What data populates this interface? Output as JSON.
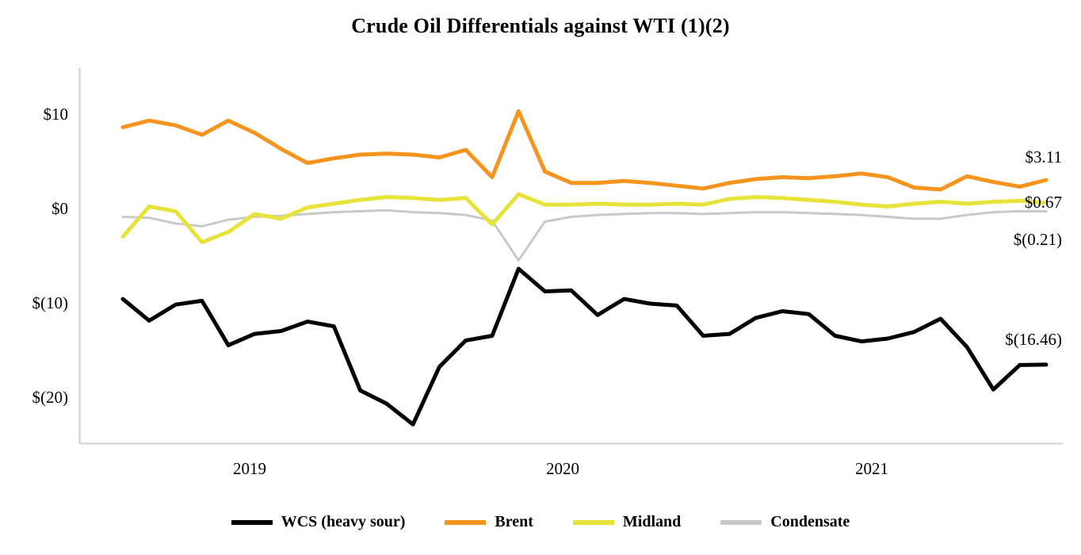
{
  "chart_data": {
    "type": "line",
    "title": "Crude Oil Differentials against WTI (1)(2)",
    "xlabel": "",
    "ylabel": "",
    "ylim": [
      -25,
      15
    ],
    "grid": false,
    "legend_position": "bottom",
    "axis_color": "#CFCFCF",
    "y_ticks": [
      {
        "label": "$10",
        "value": 10
      },
      {
        "label": "$0",
        "value": 0
      },
      {
        "label": "$(10)",
        "value": -10
      },
      {
        "label": "$(20)",
        "value": -20
      }
    ],
    "x_ticks": [
      {
        "label": "2019"
      },
      {
        "label": "2020"
      },
      {
        "label": "2021"
      }
    ],
    "series": [
      {
        "name": "WCS (heavy sour)",
        "color": "#000000",
        "end_label": "$(16.46)",
        "values": [
          -9.5,
          -11.8,
          -10.1,
          -9.7,
          -14.4,
          -13.2,
          -12.9,
          -11.9,
          -12.4,
          -19.2,
          -20.6,
          -22.8,
          -16.7,
          -13.9,
          -13.4,
          -6.3,
          -8.7,
          -8.6,
          -11.2,
          -9.5,
          -10.0,
          -10.2,
          -13.4,
          -13.2,
          -11.5,
          -10.8,
          -11.1,
          -13.4,
          -14.0,
          -13.7,
          -13.0,
          -11.6,
          -14.6,
          -19.1,
          -16.5,
          -16.46
        ]
      },
      {
        "name": "Brent",
        "color": "#F7941E",
        "end_label": "$3.11",
        "values": [
          8.7,
          9.4,
          8.9,
          7.9,
          9.4,
          8.1,
          6.4,
          4.9,
          5.4,
          5.8,
          5.9,
          5.8,
          5.5,
          6.3,
          3.4,
          10.4,
          4.0,
          2.8,
          2.8,
          3.0,
          2.8,
          2.5,
          2.2,
          2.8,
          3.2,
          3.4,
          3.3,
          3.5,
          3.8,
          3.4,
          2.3,
          2.1,
          3.5,
          2.9,
          2.4,
          3.11
        ]
      },
      {
        "name": "Midland",
        "color": "#E8E33A",
        "end_label": "$0.67",
        "values": [
          -2.9,
          0.3,
          -0.2,
          -3.5,
          -2.4,
          -0.5,
          -1.0,
          0.2,
          0.6,
          1.0,
          1.3,
          1.2,
          1.0,
          1.2,
          -1.6,
          1.6,
          0.5,
          0.5,
          0.6,
          0.5,
          0.5,
          0.6,
          0.5,
          1.1,
          1.3,
          1.2,
          1.0,
          0.8,
          0.5,
          0.3,
          0.6,
          0.8,
          0.6,
          0.8,
          0.9,
          0.67
        ]
      },
      {
        "name": "Condensate",
        "color": "#C9C9C9",
        "end_label": "$(0.21)",
        "values": [
          -0.8,
          -0.9,
          -1.5,
          -1.8,
          -1.1,
          -0.8,
          -0.7,
          -0.5,
          -0.3,
          -0.2,
          -0.1,
          -0.3,
          -0.4,
          -0.6,
          -1.2,
          -5.4,
          -1.3,
          -0.8,
          -0.6,
          -0.5,
          -0.4,
          -0.4,
          -0.5,
          -0.4,
          -0.3,
          -0.3,
          -0.4,
          -0.5,
          -0.6,
          -0.8,
          -1.0,
          -1.0,
          -0.6,
          -0.3,
          -0.2,
          -0.21
        ]
      }
    ]
  }
}
